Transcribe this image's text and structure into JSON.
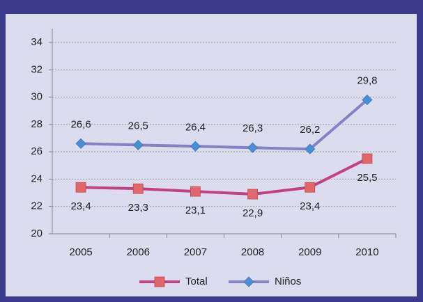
{
  "chart_data": {
    "type": "line",
    "categories": [
      "2005",
      "2006",
      "2007",
      "2008",
      "2009",
      "2010"
    ],
    "series": [
      {
        "name": "Total",
        "color": "#c2417e",
        "marker_color": "#e0676b",
        "marker": "square",
        "values": [
          23.4,
          23.3,
          23.1,
          22.9,
          23.4,
          25.5
        ],
        "value_labels": [
          "23,4",
          "23,3",
          "23,1",
          "22,9",
          "23,4",
          "25,5"
        ],
        "label_position": "below"
      },
      {
        "name": "Niños",
        "color": "#8482c4",
        "marker_color": "#4a8fd4",
        "marker": "diamond",
        "values": [
          26.6,
          26.5,
          26.4,
          26.3,
          26.2,
          29.8
        ],
        "value_labels": [
          "26,6",
          "26,5",
          "26,4",
          "26,3",
          "26,2",
          "29,8"
        ],
        "label_position": "above"
      }
    ],
    "ylim": [
      20,
      34
    ],
    "yticks": [
      20,
      22,
      24,
      26,
      28,
      30,
      32,
      34
    ],
    "grid": true,
    "legend": "bottom"
  }
}
